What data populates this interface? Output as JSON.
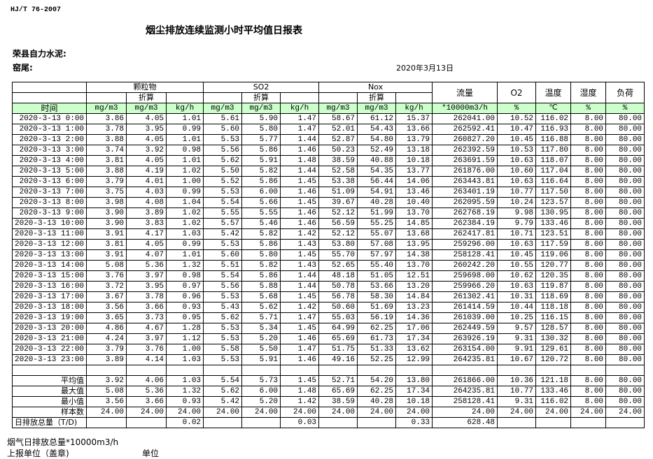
{
  "header": {
    "standard": "HJ/T  76-2007",
    "title": "烟尘排放连续监测小时平均值日报表",
    "company": "荣县自力水泥:",
    "kiln": "窑尾:",
    "date": "2020年3月13日"
  },
  "table": {
    "groups": [
      "颗粒物",
      "SO2",
      "Nox"
    ],
    "converted_label": "折算",
    "single_headers": [
      "流量",
      "O2",
      "温度",
      "湿度",
      "负荷"
    ],
    "time_header": "时间",
    "units": [
      "mg/m3",
      "mg/m3",
      "kg/h",
      "mg/m3",
      "mg/m3",
      "kg/h",
      "mg/m3",
      "mg/m3",
      "kg/h",
      "*10000m3/h",
      "%",
      "℃",
      "%",
      "%"
    ],
    "rows": [
      [
        "2020-3-13 0:00",
        "3.86",
        "4.05",
        "1.01",
        "5.61",
        "5.90",
        "1.47",
        "58.67",
        "61.12",
        "15.37",
        "262041.00",
        "10.52",
        "116.02",
        "8.00",
        "80.00"
      ],
      [
        "2020-3-13 1:00",
        "3.78",
        "3.95",
        "0.99",
        "5.60",
        "5.80",
        "1.47",
        "52.01",
        "54.43",
        "13.66",
        "262592.41",
        "10.47",
        "116.93",
        "8.00",
        "80.00"
      ],
      [
        "2020-3-13 2:00",
        "3.88",
        "4.05",
        "1.01",
        "5.53",
        "5.77",
        "1.44",
        "52.87",
        "54.80",
        "13.79",
        "260827.20",
        "10.45",
        "116.88",
        "8.00",
        "80.00"
      ],
      [
        "2020-3-13 3:00",
        "3.74",
        "3.92",
        "0.98",
        "5.56",
        "5.86",
        "1.46",
        "50.23",
        "52.49",
        "13.18",
        "262392.59",
        "10.53",
        "117.80",
        "8.00",
        "80.00"
      ],
      [
        "2020-3-13 4:00",
        "3.81",
        "4.05",
        "1.01",
        "5.62",
        "5.91",
        "1.48",
        "38.59",
        "40.88",
        "10.18",
        "263691.59",
        "10.63",
        "118.07",
        "8.00",
        "80.00"
      ],
      [
        "2020-3-13 5:00",
        "3.88",
        "4.19",
        "1.02",
        "5.50",
        "5.82",
        "1.44",
        "52.58",
        "54.35",
        "13.77",
        "261876.00",
        "10.60",
        "117.04",
        "8.00",
        "80.00"
      ],
      [
        "2020-3-13 6:00",
        "3.79",
        "4.01",
        "1.00",
        "5.52",
        "5.86",
        "1.45",
        "53.38",
        "56.44",
        "14.06",
        "263443.81",
        "10.63",
        "116.64",
        "8.00",
        "80.00"
      ],
      [
        "2020-3-13 7:00",
        "3.75",
        "4.03",
        "0.99",
        "5.53",
        "6.00",
        "1.46",
        "51.09",
        "54.91",
        "13.46",
        "263401.19",
        "10.77",
        "117.50",
        "8.00",
        "80.00"
      ],
      [
        "2020-3-13 8:00",
        "3.98",
        "4.08",
        "1.04",
        "5.54",
        "5.66",
        "1.45",
        "39.67",
        "40.28",
        "10.40",
        "262095.59",
        "10.24",
        "123.57",
        "8.00",
        "80.00"
      ],
      [
        "2020-3-13 9:00",
        "3.90",
        "3.89",
        "1.02",
        "5.55",
        "5.55",
        "1.46",
        "52.12",
        "51.99",
        "13.70",
        "262768.19",
        "9.98",
        "130.95",
        "8.00",
        "80.00"
      ],
      [
        "2020-3-13 10:00",
        "3.90",
        "3.83",
        "1.02",
        "5.57",
        "5.46",
        "1.46",
        "56.59",
        "55.25",
        "14.85",
        "262384.19",
        "9.79",
        "133.46",
        "8.00",
        "80.00"
      ],
      [
        "2020-3-13 11:00",
        "3.91",
        "4.17",
        "1.03",
        "5.42",
        "5.82",
        "1.42",
        "52.12",
        "55.07",
        "13.68",
        "262417.81",
        "10.71",
        "123.51",
        "8.00",
        "80.00"
      ],
      [
        "2020-3-13 12:00",
        "3.81",
        "4.05",
        "0.99",
        "5.53",
        "5.86",
        "1.43",
        "53.80",
        "57.08",
        "13.95",
        "259296.00",
        "10.63",
        "117.59",
        "8.00",
        "80.00"
      ],
      [
        "2020-3-13 13:00",
        "3.91",
        "4.07",
        "1.01",
        "5.60",
        "5.80",
        "1.45",
        "55.70",
        "57.97",
        "14.38",
        "258128.41",
        "10.45",
        "119.06",
        "8.00",
        "80.00"
      ],
      [
        "2020-3-13 14:00",
        "5.08",
        "5.36",
        "1.32",
        "5.51",
        "5.82",
        "1.43",
        "52.65",
        "55.40",
        "13.70",
        "260242.20",
        "10.55",
        "120.77",
        "8.00",
        "80.00"
      ],
      [
        "2020-3-13 15:00",
        "3.76",
        "3.97",
        "0.98",
        "5.54",
        "5.86",
        "1.44",
        "48.18",
        "51.05",
        "12.51",
        "259698.00",
        "10.62",
        "120.35",
        "8.00",
        "80.00"
      ],
      [
        "2020-3-13 16:00",
        "3.72",
        "3.95",
        "0.97",
        "5.56",
        "5.88",
        "1.44",
        "50.78",
        "53.66",
        "13.20",
        "259966.20",
        "10.63",
        "119.87",
        "8.00",
        "80.00"
      ],
      [
        "2020-3-13 17:00",
        "3.67",
        "3.78",
        "0.96",
        "5.53",
        "5.68",
        "1.45",
        "56.78",
        "58.30",
        "14.84",
        "261302.41",
        "10.31",
        "118.69",
        "8.00",
        "80.00"
      ],
      [
        "2020-3-13 18:00",
        "3.56",
        "3.66",
        "0.93",
        "5.43",
        "5.62",
        "1.42",
        "50.60",
        "51.69",
        "13.23",
        "261414.59",
        "10.44",
        "118.18",
        "8.00",
        "80.00"
      ],
      [
        "2020-3-13 19:00",
        "3.65",
        "3.73",
        "0.95",
        "5.62",
        "5.71",
        "1.47",
        "55.03",
        "56.19",
        "14.36",
        "261039.00",
        "10.25",
        "116.15",
        "8.00",
        "80.00"
      ],
      [
        "2020-3-13 20:00",
        "4.86",
        "4.67",
        "1.28",
        "5.53",
        "5.34",
        "1.45",
        "64.99",
        "62.25",
        "17.06",
        "262449.59",
        "9.57",
        "128.57",
        "8.00",
        "80.00"
      ],
      [
        "2020-3-13 21:00",
        "4.24",
        "3.97",
        "1.12",
        "5.53",
        "5.20",
        "1.46",
        "65.69",
        "61.73",
        "17.34",
        "263926.19",
        "9.31",
        "130.32",
        "8.00",
        "80.00"
      ],
      [
        "2020-3-13 22:00",
        "3.79",
        "3.76",
        "1.00",
        "5.58",
        "5.50",
        "1.47",
        "51.75",
        "51.33",
        "13.62",
        "263154.00",
        "9.91",
        "129.61",
        "8.00",
        "80.00"
      ],
      [
        "2020-3-13 23:00",
        "3.89",
        "4.14",
        "1.03",
        "5.53",
        "5.91",
        "1.46",
        "49.16",
        "52.25",
        "12.99",
        "264235.81",
        "10.67",
        "120.72",
        "8.00",
        "80.00"
      ]
    ],
    "summary": [
      [
        "平均值",
        "3.92",
        "4.06",
        "1.03",
        "5.54",
        "5.73",
        "1.45",
        "52.71",
        "54.20",
        "13.80",
        "261866.00",
        "10.36",
        "121.18",
        "8.00",
        "80.00"
      ],
      [
        "最大值",
        "5.08",
        "5.36",
        "1.32",
        "5.62",
        "6.00",
        "1.48",
        "65.69",
        "62.25",
        "17.34",
        "264235.81",
        "10.77",
        "133.46",
        "8.00",
        "80.00"
      ],
      [
        "最小值",
        "3.56",
        "3.66",
        "0.93",
        "5.42",
        "5.20",
        "1.42",
        "38.59",
        "40.28",
        "10.18",
        "258128.41",
        "9.31",
        "116.02",
        "8.00",
        "80.00"
      ],
      [
        "样本数",
        "24.00",
        "24.00",
        "24.00",
        "24.00",
        "24.00",
        "24.00",
        "24.00",
        "24.00",
        "24.00",
        "24.00",
        "24.00",
        "24.00",
        "24.00",
        "24.00"
      ],
      [
        "日排放总量（T/D)",
        "",
        "",
        "0.02",
        "",
        "",
        "0.03",
        "",
        "",
        "0.33",
        "628.48",
        "",
        "",
        "",
        ""
      ]
    ],
    "header_color": "#ccffcc"
  },
  "footer": {
    "flue_total": "烟气日排放总量*10000m3/h",
    "report_unit": "上报单位（盖章)",
    "unit": "单位"
  }
}
